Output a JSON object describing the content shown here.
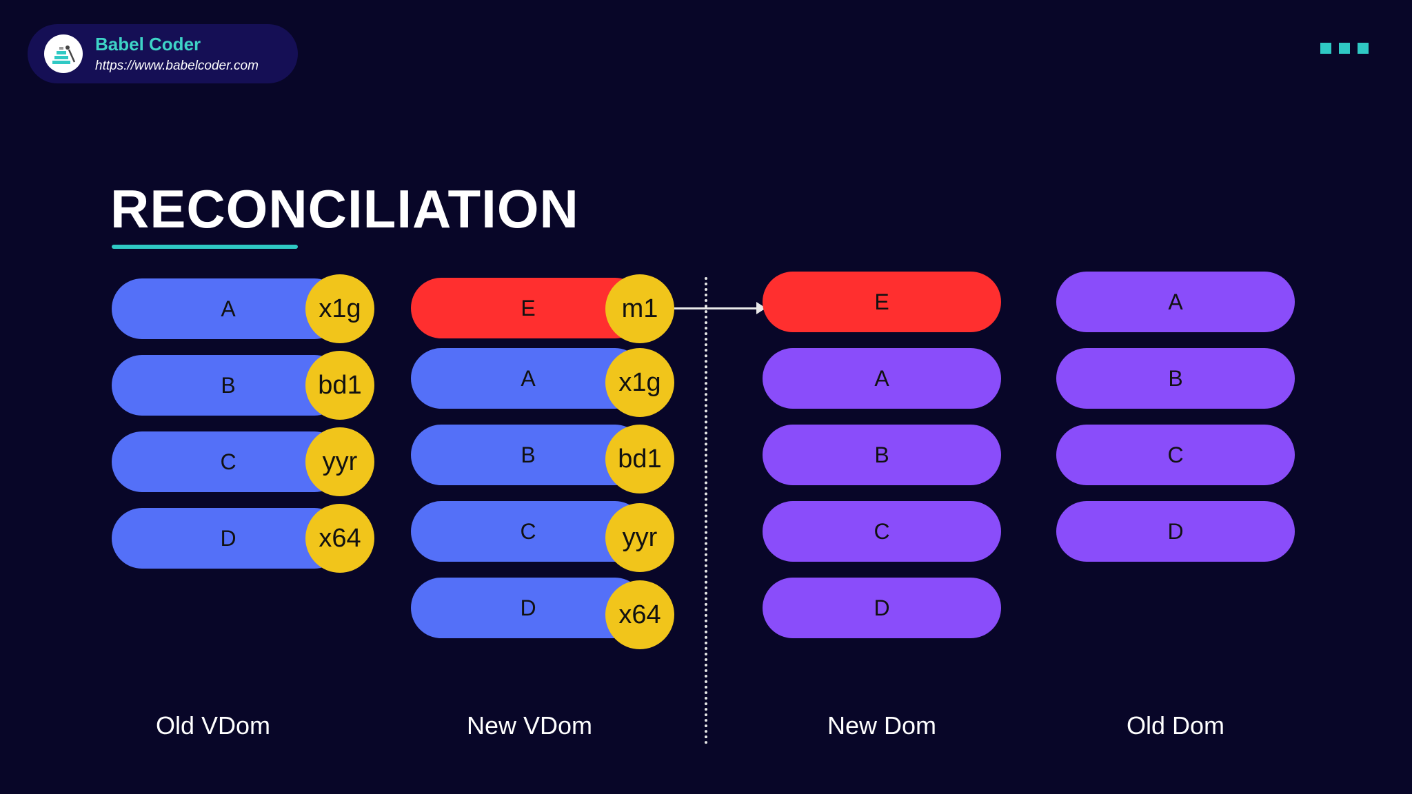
{
  "brand": {
    "name": "Babel Coder",
    "url": "https://www.babelcoder.com",
    "logo_icon": "pyramid-logo-icon"
  },
  "title": "RECONCILIATION",
  "colors": {
    "background": "#080628",
    "accent": "#2fc9c4",
    "vdom_item": "#5470f8",
    "new_item": "#ff2f2f",
    "dom_item": "#8a4dfa",
    "key_badge": "#f1c51b"
  },
  "columns": {
    "old_vdom": {
      "label": "Old VDom",
      "items": [
        {
          "label": "A",
          "key": "x1g"
        },
        {
          "label": "B",
          "key": "bd1"
        },
        {
          "label": "C",
          "key": "yyr"
        },
        {
          "label": "D",
          "key": "x64"
        }
      ]
    },
    "new_vdom": {
      "label": "New VDom",
      "items": [
        {
          "label": "E",
          "key": "m1",
          "is_new": true
        },
        {
          "label": "A",
          "key": "x1g"
        },
        {
          "label": "B",
          "key": "bd1"
        },
        {
          "label": "C",
          "key": "yyr"
        },
        {
          "label": "D",
          "key": "x64"
        }
      ]
    },
    "new_dom": {
      "label": "New Dom",
      "items": [
        {
          "label": "E",
          "is_new": true
        },
        {
          "label": "A"
        },
        {
          "label": "B"
        },
        {
          "label": "C"
        },
        {
          "label": "D"
        }
      ]
    },
    "old_dom": {
      "label": "Old Dom",
      "items": [
        {
          "label": "A"
        },
        {
          "label": "B"
        },
        {
          "label": "C"
        },
        {
          "label": "D"
        }
      ]
    }
  }
}
